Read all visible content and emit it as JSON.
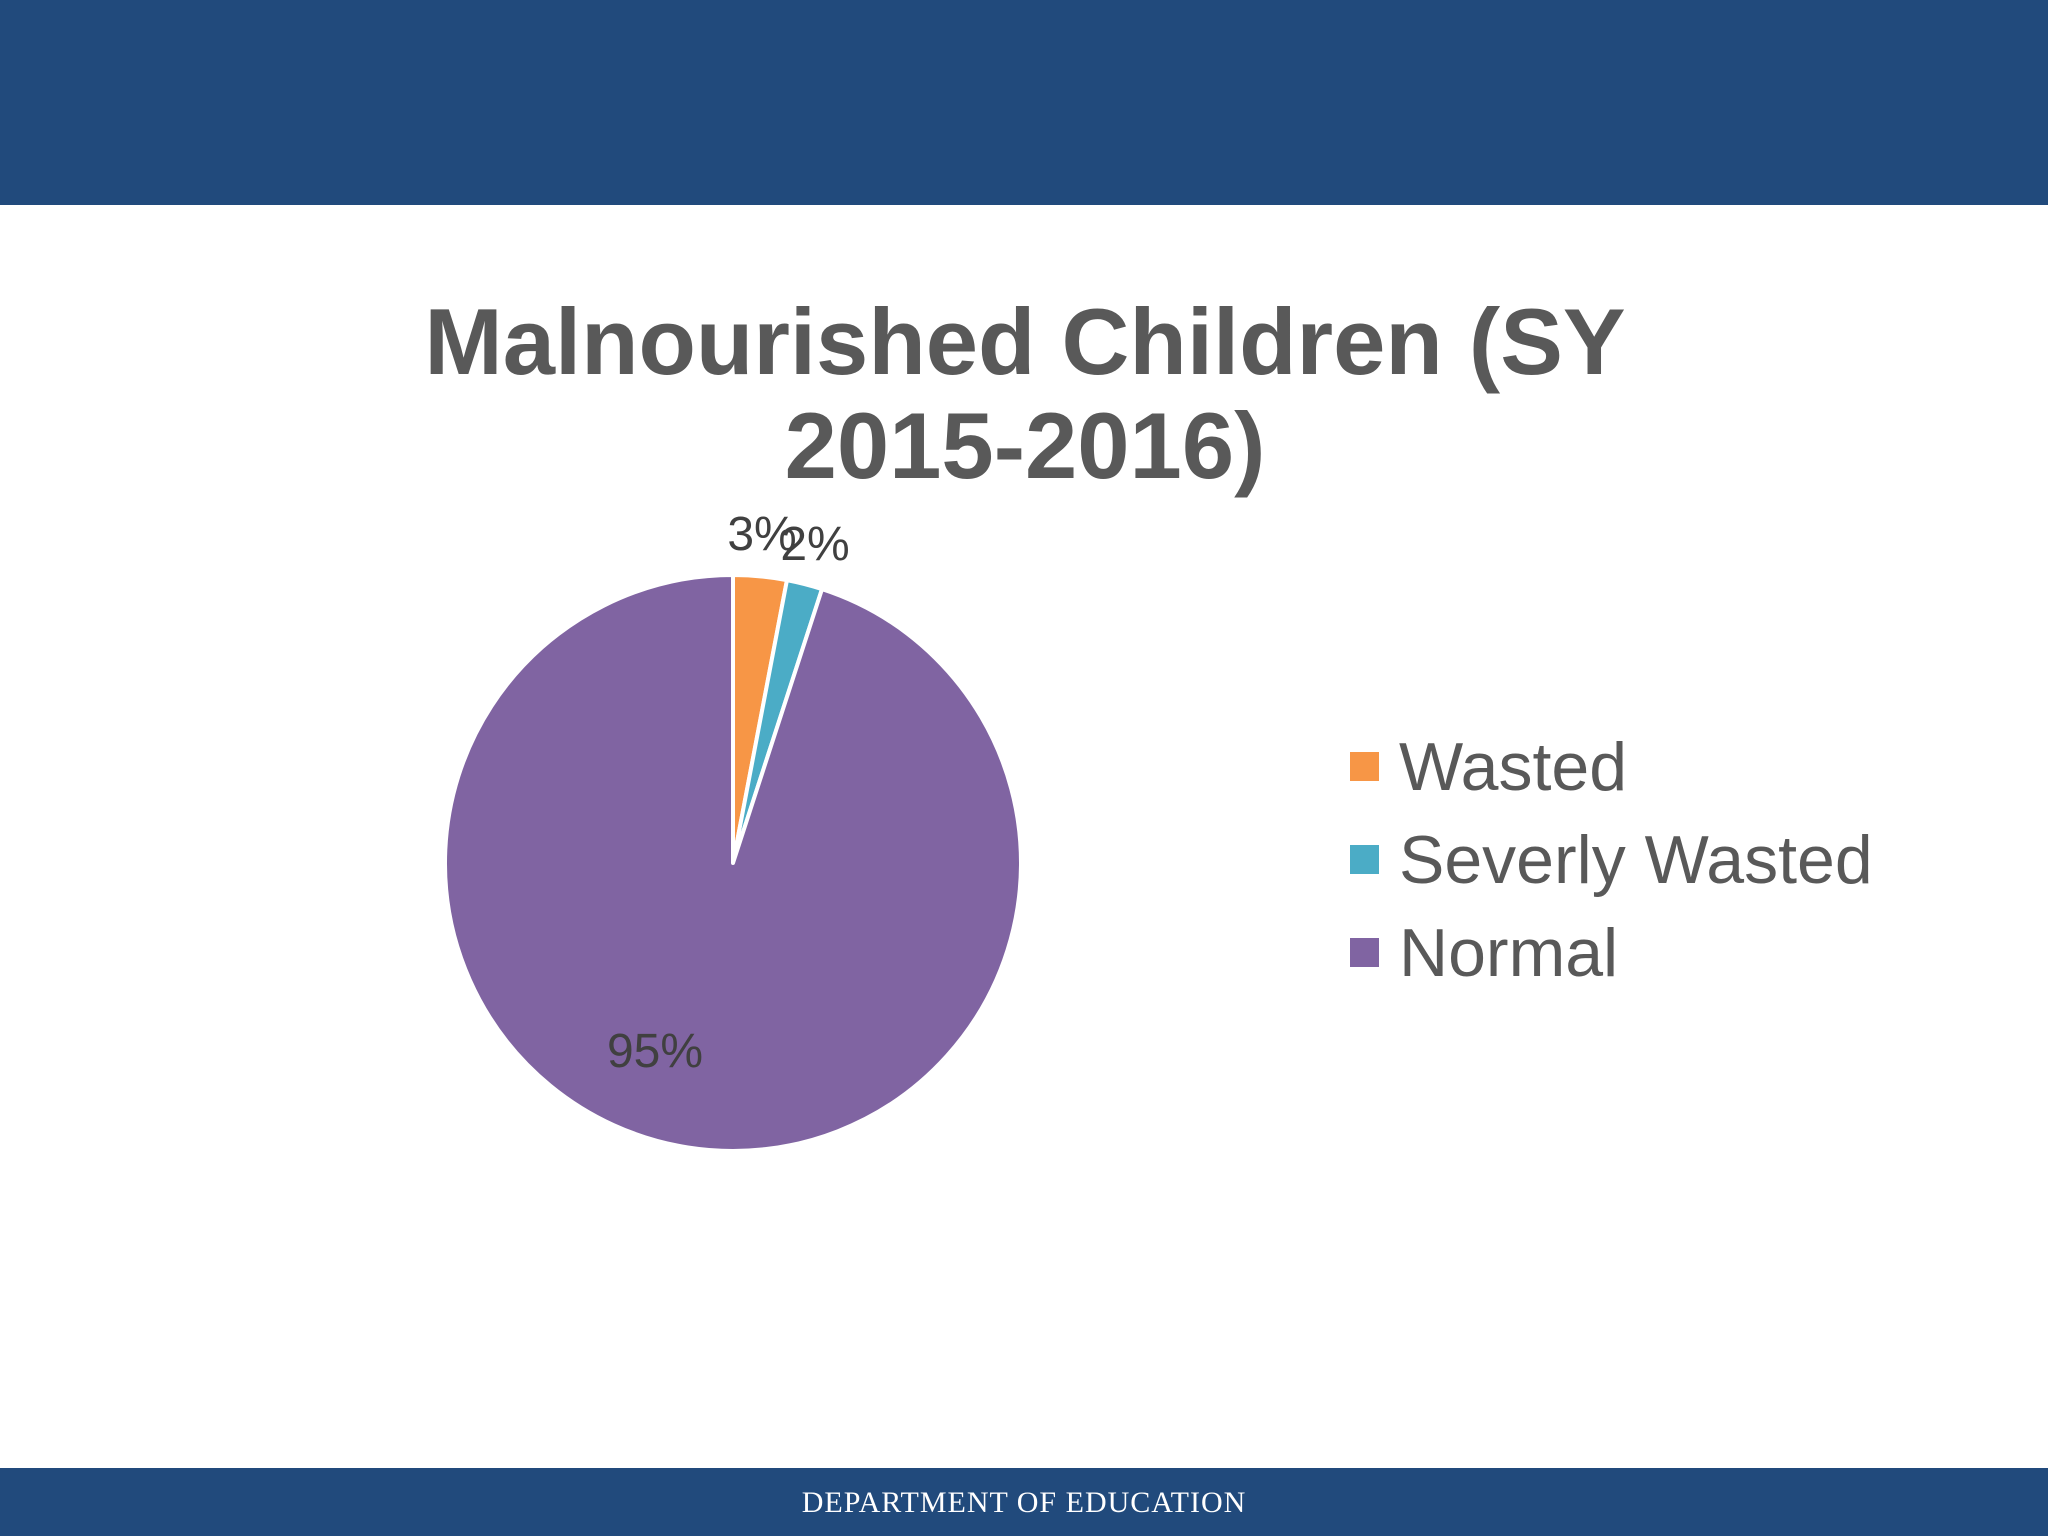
{
  "footer": {
    "text": "DEPARTMENT OF EDUCATION"
  },
  "chart_data": {
    "type": "pie",
    "title_lines": [
      "Malnourished Children (SY",
      "2015-2016)"
    ],
    "categories": [
      "Wasted",
      "Severly Wasted",
      "Normal"
    ],
    "values": [
      3,
      2,
      95
    ],
    "data_labels": [
      "3%",
      "2%",
      "95%"
    ],
    "colors": [
      "#f79646",
      "#4bacc6",
      "#8064a2"
    ],
    "legend_position": "right"
  }
}
